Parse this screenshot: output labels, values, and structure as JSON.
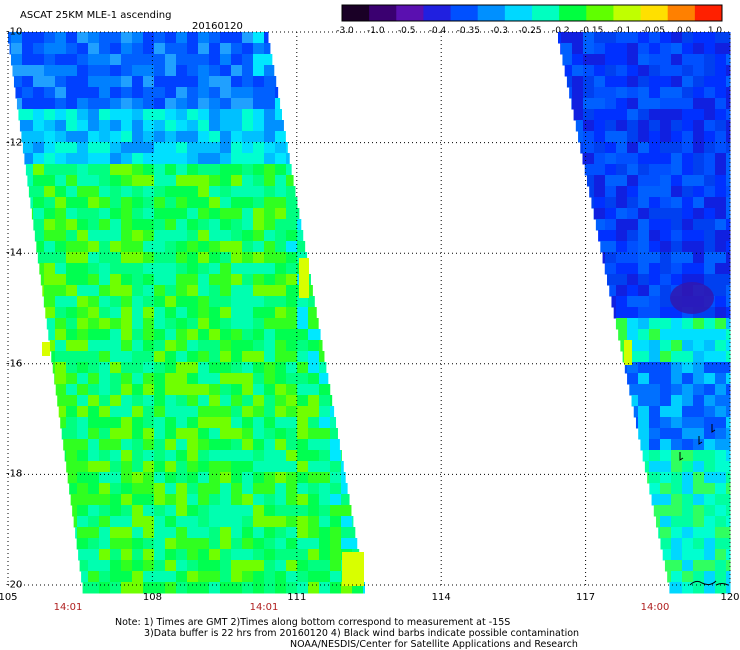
{
  "header": {
    "title": "ASCAT 25KM MLE-1 ascending",
    "date": "20160120"
  },
  "colorbar": {
    "labels": [
      "-3.0",
      "-1.0",
      "-0.5",
      "-0.4",
      "-0.35",
      "-0.3",
      "-0.25",
      "-0.2",
      "-0.15",
      "-0.1",
      "-0.05",
      "0.0",
      "1.0"
    ],
    "colors": [
      "#1a0026",
      "#3a0070",
      "#5a10b0",
      "#2020e0",
      "#0050ff",
      "#0090ff",
      "#00d8ff",
      "#00ffc0",
      "#00ff40",
      "#60ff00",
      "#c0ff00",
      "#ffe000",
      "#ff8000",
      "#ff2000"
    ]
  },
  "map": {
    "lat_labels": [
      "-10",
      "-12",
      "-14",
      "-16",
      "-18",
      "-20"
    ],
    "lon_labels": [
      "105",
      "108",
      "111",
      "114",
      "117",
      "120"
    ],
    "time_labels": [
      "14:01",
      "14:01",
      "14:00"
    ]
  },
  "notes": {
    "line1": "Note: 1) Times are GMT 2)Times along bottom correspond to measurement at -15S",
    "line2": "3)Data buffer is 22 hrs from 20160120 4) Black wind barbs indicate possible contamination",
    "line3": "NOAA/NESDIS/Center for Satellite Applications and Research"
  }
}
